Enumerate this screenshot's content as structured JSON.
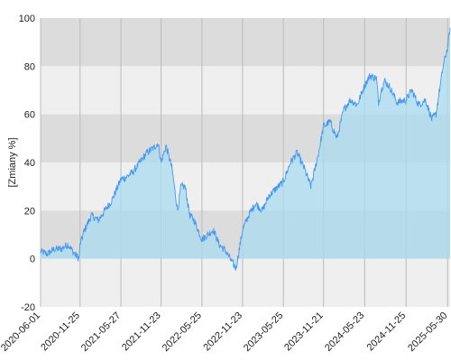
{
  "chart_data": {
    "type": "area",
    "title": "",
    "xlabel": "",
    "ylabel": "[Zmiany %]",
    "x_range": [
      "2020-06-01",
      "2025-06-10"
    ],
    "ylim": [
      -20,
      100
    ],
    "y_ticks": [
      -20,
      0,
      20,
      40,
      60,
      80,
      100
    ],
    "x_ticks": [
      "2020-06-01",
      "2020-11-25",
      "2021-05-27",
      "2021-11-23",
      "2022-05-25",
      "2022-11-23",
      "2023-05-25",
      "2023-11-21",
      "2024-05-23",
      "2024-11-25",
      "2025-05-30"
    ],
    "grid": true,
    "legend": "none",
    "colors": {
      "line": "#4499ee",
      "fill": "#a9dcf0",
      "band_dark": "#dcdcdc",
      "band_light": "#efefef",
      "grid": "#bbbbbb"
    },
    "series": [
      {
        "x": [
          "2020-06-01",
          "2020-07-01",
          "2020-08-01",
          "2020-09-01",
          "2020-10-01",
          "2020-11-01",
          "2020-11-20",
          "2020-11-25",
          "2020-12-15",
          "2021-01-15",
          "2021-02-15",
          "2021-03-15",
          "2021-04-15",
          "2021-05-27",
          "2021-06-20",
          "2021-07-20",
          "2021-08-20",
          "2021-09-20",
          "2021-10-20",
          "2021-11-10",
          "2021-11-23",
          "2021-12-15",
          "2022-01-10",
          "2022-02-05",
          "2022-02-20",
          "2022-03-10",
          "2022-04-01",
          "2022-04-20",
          "2022-05-25",
          "2022-06-20",
          "2022-07-15",
          "2022-08-10",
          "2022-09-10",
          "2022-10-10",
          "2022-10-25",
          "2022-11-23",
          "2022-12-20",
          "2023-01-20",
          "2023-02-20",
          "2023-03-20",
          "2023-04-20",
          "2023-05-25",
          "2023-06-25",
          "2023-07-25",
          "2023-08-25",
          "2023-09-25",
          "2023-10-25",
          "2023-11-21",
          "2023-12-20",
          "2024-01-20",
          "2024-02-20",
          "2024-03-20",
          "2024-04-20",
          "2024-05-23",
          "2024-06-15",
          "2024-07-15",
          "2024-07-25",
          "2024-08-05",
          "2024-08-20",
          "2024-09-15",
          "2024-10-15",
          "2024-11-25",
          "2024-12-20",
          "2025-01-20",
          "2025-02-20",
          "2025-03-20",
          "2025-04-08",
          "2025-04-20",
          "2025-05-10",
          "2025-05-30",
          "2025-06-10"
        ],
        "values": [
          3,
          2,
          4,
          4,
          6,
          2,
          0,
          6,
          12,
          18,
          16,
          20,
          24,
          33,
          34,
          36,
          40,
          44,
          46,
          48,
          40,
          47,
          38,
          20,
          30,
          30,
          18,
          16,
          8,
          10,
          12,
          6,
          3,
          -2,
          -4,
          12,
          18,
          23,
          20,
          26,
          29,
          32,
          40,
          44,
          38,
          30,
          42,
          55,
          57,
          50,
          62,
          66,
          64,
          72,
          76,
          75,
          65,
          70,
          74,
          71,
          65,
          66,
          70,
          64,
          66,
          58,
          60,
          68,
          80,
          88,
          96
        ]
      }
    ]
  }
}
